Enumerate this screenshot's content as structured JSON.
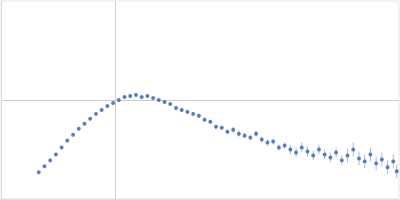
{
  "chart_data": {
    "type": "scatter",
    "color": "#3563b5",
    "grid": true,
    "tick_labels": false,
    "xlim": [
      0,
      3.48
    ],
    "ylim": [
      0,
      2
    ],
    "xticks": [
      1
    ],
    "yticks": [
      1
    ],
    "x": [
      0.33,
      0.38,
      0.43,
      0.48,
      0.53,
      0.58,
      0.63,
      0.68,
      0.73,
      0.78,
      0.83,
      0.88,
      0.93,
      0.98,
      1.03,
      1.08,
      1.13,
      1.18,
      1.23,
      1.28,
      1.33,
      1.38,
      1.43,
      1.48,
      1.53,
      1.58,
      1.63,
      1.68,
      1.73,
      1.78,
      1.83,
      1.88,
      1.93,
      1.98,
      2.03,
      2.08,
      2.13,
      2.18,
      2.23,
      2.28,
      2.33,
      2.38,
      2.43,
      2.48,
      2.53,
      2.58,
      2.63,
      2.68,
      2.73,
      2.78,
      2.83,
      2.88,
      2.93,
      2.98,
      3.03,
      3.08,
      3.13,
      3.18,
      3.23,
      3.28,
      3.33,
      3.38,
      3.43,
      3.46
    ],
    "values": [
      0.27,
      0.33,
      0.39,
      0.45,
      0.52,
      0.59,
      0.65,
      0.71,
      0.76,
      0.81,
      0.86,
      0.9,
      0.94,
      0.97,
      1.0,
      1.03,
      1.04,
      1.05,
      1.03,
      1.04,
      1.02,
      1.0,
      0.98,
      0.96,
      0.92,
      0.9,
      0.88,
      0.86,
      0.84,
      0.8,
      0.78,
      0.73,
      0.72,
      0.68,
      0.7,
      0.66,
      0.64,
      0.62,
      0.66,
      0.6,
      0.57,
      0.58,
      0.52,
      0.54,
      0.5,
      0.47,
      0.52,
      0.48,
      0.44,
      0.5,
      0.45,
      0.42,
      0.47,
      0.39,
      0.44,
      0.5,
      0.41,
      0.38,
      0.45,
      0.36,
      0.4,
      0.32,
      0.38,
      0.28
    ],
    "errors": [
      0.005,
      0.005,
      0.005,
      0.005,
      0.005,
      0.005,
      0.005,
      0.005,
      0.005,
      0.005,
      0.005,
      0.005,
      0.005,
      0.005,
      0.01,
      0.01,
      0.01,
      0.01,
      0.01,
      0.01,
      0.01,
      0.01,
      0.01,
      0.01,
      0.02,
      0.02,
      0.02,
      0.02,
      0.02,
      0.02,
      0.02,
      0.02,
      0.02,
      0.02,
      0.03,
      0.03,
      0.03,
      0.03,
      0.03,
      0.03,
      0.03,
      0.03,
      0.03,
      0.03,
      0.05,
      0.05,
      0.05,
      0.05,
      0.05,
      0.05,
      0.05,
      0.05,
      0.05,
      0.05,
      0.07,
      0.07,
      0.07,
      0.07,
      0.07,
      0.07,
      0.07,
      0.07,
      0.07,
      0.07
    ]
  }
}
